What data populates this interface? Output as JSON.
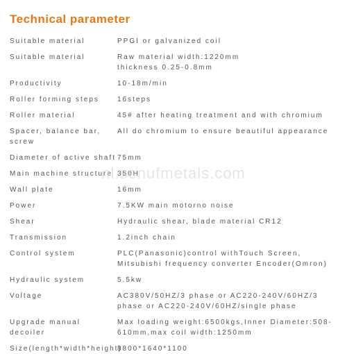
{
  "title": "Technical parameter",
  "watermark": "nl.senufmetals.com",
  "colors": {
    "title": "#e67817",
    "text": "#555555",
    "watermark": "#d0d0d0",
    "background": "#ffffff"
  },
  "rows": [
    {
      "label": "Suitable material",
      "value": "PPGI or galvanized coil"
    },
    {
      "label": "Suitable material",
      "value": "Raw material width:1220mm\nthickness 0.25-0.8mm"
    },
    {
      "label": "Productivity",
      "value": "10-18m/min"
    },
    {
      "label": "Roller forming steps",
      "value": "16steps"
    },
    {
      "label": "Roller material",
      "value": "45# after heating treatment and with chromium"
    },
    {
      "label": "Spacer, balance bar, screw",
      "value": "All do chromium to ensure beautiful appearance"
    },
    {
      "label": "Diameter of active shaft",
      "value": "75mm"
    },
    {
      "label": "Main machine structure",
      "value": "350H"
    },
    {
      "label": "Wall plate",
      "value": "16mm"
    },
    {
      "label": "Power",
      "value": "7.5KW main motorno noise"
    },
    {
      "label": "Shear",
      "value": "Hydraulic shear, blade material CR12"
    },
    {
      "label": "Transmission",
      "value": "1.2inch chain"
    },
    {
      "label": "Control system",
      "value": "PLC(Panasonic)control withTouch Screen,\nMitsubishi frequency converter Encoder(Omron)"
    },
    {
      "label": "Hydraulic system",
      "value": "5.5kw"
    },
    {
      "label": "Voltage",
      "value": "AC380V/50HZ/3 phase or AC220-240V/60HZ/3 phase  or AC220-240V/60HZ/single phase"
    },
    {
      "label": "Upgrade manual decoiler",
      "value": "Max loading weight:6500kgs,Inner Diameter:508-610mm,max coil width:1250mm"
    },
    {
      "label": "Size(length*width*height)",
      "value": "8800*1640*1100"
    }
  ]
}
